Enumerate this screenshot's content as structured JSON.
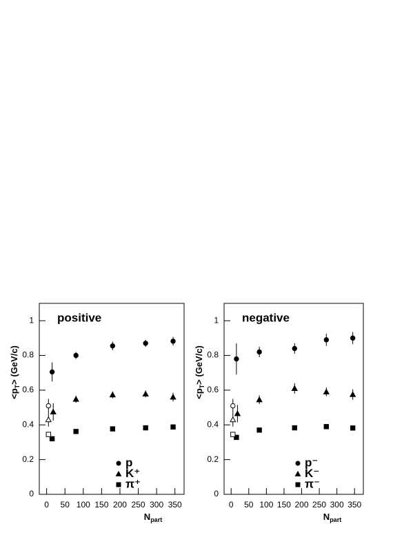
{
  "chart_data": [
    {
      "type": "scatter",
      "title": "positive",
      "x_label": [
        "N",
        "part"
      ],
      "y_label": [
        "<p",
        "T",
        "> (GeV/c)"
      ],
      "xlim": [
        -20,
        375
      ],
      "ylim": [
        0,
        1.1
      ],
      "xticks": [
        0,
        50,
        100,
        150,
        200,
        250,
        300,
        350
      ],
      "yticks": [
        0,
        0.2,
        0.4,
        0.6,
        0.8,
        1
      ],
      "legend": "lower right",
      "series": [
        {
          "name": "p",
          "marker": "circle",
          "filled": true,
          "color": "#000000",
          "x": [
            15,
            80,
            180,
            270,
            345
          ],
          "values": [
            0.705,
            0.8,
            0.855,
            0.87,
            0.882
          ],
          "errors": [
            0.055,
            0.02,
            0.025,
            0.02,
            0.025
          ]
        },
        {
          "name": "K⁺",
          "marker": "triangle",
          "filled": true,
          "color": "#000000",
          "x": [
            18,
            80,
            180,
            270,
            345
          ],
          "values": [
            0.475,
            0.548,
            0.573,
            0.578,
            0.56
          ],
          "errors": [
            0.05,
            0.02,
            0.02,
            0.02,
            0.025
          ]
        },
        {
          "name": "π⁺",
          "marker": "square",
          "filled": true,
          "color": "#000000",
          "x": [
            15,
            80,
            180,
            270,
            345
          ],
          "values": [
            0.32,
            0.362,
            0.377,
            0.383,
            0.388
          ],
          "errors": [
            0.005,
            0.005,
            0.005,
            0.005,
            0.005
          ]
        },
        {
          "marker": "circle",
          "filled": false,
          "color": "#000000",
          "x": [
            5
          ],
          "values": [
            0.51
          ],
          "errors": [
            0.04
          ]
        },
        {
          "marker": "triangle",
          "filled": false,
          "color": "#000000",
          "x": [
            5
          ],
          "values": [
            0.43
          ],
          "errors": [
            0.04
          ]
        },
        {
          "marker": "square",
          "filled": false,
          "color": "#000000",
          "x": [
            5
          ],
          "values": [
            0.345
          ],
          "errors": [
            0.01
          ]
        }
      ]
    },
    {
      "type": "scatter",
      "title": "negative",
      "x_label": [
        "N",
        "part"
      ],
      "y_label": [
        "<p",
        "T",
        "> (GeV/c)"
      ],
      "xlim": [
        -20,
        375
      ],
      "ylim": [
        0,
        1.1
      ],
      "xticks": [
        0,
        50,
        100,
        150,
        200,
        250,
        300,
        350
      ],
      "yticks": [
        0,
        0.2,
        0.4,
        0.6,
        0.8,
        1
      ],
      "legend": "lower right",
      "series": [
        {
          "name": "p⁻",
          "marker": "circle",
          "filled": true,
          "color": "#000000",
          "x": [
            15,
            80,
            180,
            270,
            345
          ],
          "values": [
            0.78,
            0.82,
            0.84,
            0.89,
            0.9
          ],
          "errors": [
            0.09,
            0.03,
            0.03,
            0.035,
            0.035
          ]
        },
        {
          "name": "K⁻",
          "marker": "triangle",
          "filled": true,
          "color": "#000000",
          "x": [
            18,
            80,
            180,
            270,
            345
          ],
          "values": [
            0.465,
            0.545,
            0.61,
            0.59,
            0.575
          ],
          "errors": [
            0.05,
            0.025,
            0.03,
            0.025,
            0.03
          ]
        },
        {
          "name": "π⁻",
          "marker": "square",
          "filled": true,
          "color": "#000000",
          "x": [
            15,
            80,
            180,
            270,
            345
          ],
          "values": [
            0.328,
            0.37,
            0.383,
            0.39,
            0.382
          ],
          "errors": [
            0.005,
            0.005,
            0.005,
            0.005,
            0.005
          ]
        },
        {
          "marker": "circle",
          "filled": false,
          "color": "#000000",
          "x": [
            5
          ],
          "values": [
            0.51
          ],
          "errors": [
            0.04
          ]
        },
        {
          "marker": "triangle",
          "filled": false,
          "color": "#000000",
          "x": [
            5
          ],
          "values": [
            0.43
          ],
          "errors": [
            0.04
          ]
        },
        {
          "marker": "square",
          "filled": false,
          "color": "#000000",
          "x": [
            5
          ],
          "values": [
            0.345
          ],
          "errors": [
            0.01
          ]
        }
      ]
    }
  ]
}
